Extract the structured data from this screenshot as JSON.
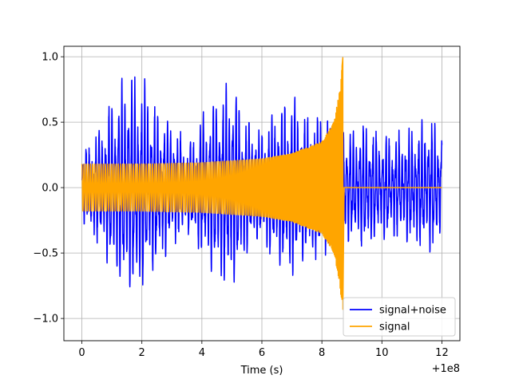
{
  "chart_data": {
    "type": "line",
    "title": "",
    "xlabel": "Time (s)",
    "ylabel": "",
    "x_offset_label": "+1e8",
    "xlim": [
      -0.6,
      12.6
    ],
    "ylim": [
      -1.17,
      1.08
    ],
    "x_ticks": [
      0,
      2,
      4,
      6,
      8,
      10,
      12
    ],
    "x_tick_labels": [
      "0",
      "2",
      "4",
      "6",
      "8",
      "10",
      "12"
    ],
    "y_ticks": [
      -1.0,
      -0.5,
      0.0,
      0.5,
      1.0
    ],
    "y_tick_labels": [
      "−1.0",
      "−0.5",
      "0.0",
      "0.5",
      "1.0"
    ],
    "grid": true,
    "legend_position": "lower-right",
    "series": [
      {
        "name": "signal+noise",
        "color": "#0000ff",
        "x_range": [
          0,
          12
        ],
        "envelope": [
          [
            0.0,
            0.25
          ],
          [
            0.5,
            0.45
          ],
          [
            1.0,
            0.7
          ],
          [
            1.5,
            0.95
          ],
          [
            2.0,
            0.85
          ],
          [
            2.5,
            0.65
          ],
          [
            3.0,
            0.5
          ],
          [
            3.5,
            0.35
          ],
          [
            4.0,
            0.55
          ],
          [
            4.5,
            0.75
          ],
          [
            5.0,
            0.85
          ],
          [
            5.5,
            0.55
          ],
          [
            6.0,
            0.45
          ],
          [
            6.5,
            0.65
          ],
          [
            7.0,
            0.75
          ],
          [
            7.5,
            0.55
          ],
          [
            8.0,
            0.6
          ],
          [
            8.5,
            0.5
          ],
          [
            9.0,
            0.45
          ],
          [
            9.5,
            0.5
          ],
          [
            10.0,
            0.4
          ],
          [
            10.5,
            0.4
          ],
          [
            11.0,
            0.45
          ],
          [
            11.5,
            0.55
          ],
          [
            12.0,
            0.45
          ]
        ]
      },
      {
        "name": "signal",
        "color": "#ffa500",
        "x_range": [
          0,
          12
        ],
        "chirp_end": 8.7,
        "envelope": [
          [
            0.0,
            0.18
          ],
          [
            2.0,
            0.18
          ],
          [
            4.0,
            0.19
          ],
          [
            6.0,
            0.22
          ],
          [
            7.0,
            0.26
          ],
          [
            8.0,
            0.35
          ],
          [
            8.4,
            0.5
          ],
          [
            8.6,
            0.75
          ],
          [
            8.7,
            1.0
          ],
          [
            8.75,
            0.0
          ],
          [
            12.0,
            0.0
          ]
        ]
      }
    ]
  }
}
